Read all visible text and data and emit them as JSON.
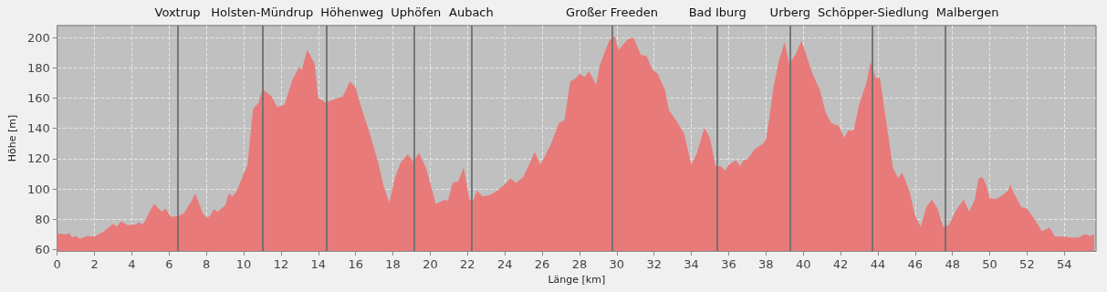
{
  "chart_data": {
    "type": "area",
    "xlabel": "Länge [km]",
    "ylabel": "Höhe [m]",
    "x": [
      0,
      0.2,
      0.5,
      0.6,
      0.8,
      1.0,
      1.2,
      1.6,
      2.0,
      2.5,
      3.0,
      3.2,
      3.4,
      3.8,
      4.2,
      4.4,
      4.6,
      5.0,
      5.2,
      5.6,
      5.8,
      6.1,
      6.5,
      6.8,
      7.2,
      7.4,
      7.8,
      8.0,
      8.2,
      8.4,
      8.6,
      9.0,
      9.2,
      9.4,
      9.6,
      9.8,
      10.2,
      10.5,
      10.8,
      11.0,
      11.5,
      11.8,
      12.2,
      12.6,
      13.0,
      13.1,
      13.4,
      13.8,
      14.0,
      14.4,
      15.0,
      15.3,
      15.7,
      16.0,
      16.3,
      16.7,
      17.2,
      17.5,
      17.8,
      18.1,
      18.4,
      18.8,
      19.1,
      19.4,
      19.8,
      20.3,
      20.8,
      20.95,
      21.2,
      21.5,
      21.8,
      22.1,
      22.3,
      22.5,
      22.8,
      23.2,
      23.6,
      24.0,
      24.3,
      24.6,
      25.0,
      25.3,
      25.6,
      25.9,
      26.2,
      26.5,
      26.9,
      27.2,
      27.5,
      27.8,
      28.0,
      28.3,
      28.5,
      28.9,
      29.1,
      29.6,
      29.9,
      30.1,
      30.6,
      30.9,
      31.3,
      31.6,
      31.9,
      32.2,
      32.6,
      32.8,
      33.2,
      33.6,
      34.0,
      34.3,
      34.7,
      35.0,
      35.3,
      35.6,
      35.8,
      36.0,
      36.4,
      36.6,
      36.8,
      37.0,
      37.4,
      37.8,
      38.0,
      38.2,
      38.4,
      38.7,
      39.0,
      39.25,
      39.6,
      39.9,
      40.2,
      40.5,
      40.9,
      41.2,
      41.5,
      41.9,
      42.2,
      42.4,
      42.7,
      43.0,
      43.4,
      43.6,
      43.9,
      44.1,
      44.5,
      44.8,
      45.1,
      45.3,
      45.7,
      46.0,
      46.3,
      46.6,
      46.9,
      47.2,
      47.5,
      47.8,
      48.2,
      48.6,
      48.9,
      49.2,
      49.4,
      49.6,
      49.8,
      50.0,
      50.3,
      50.6,
      51.0,
      51.1,
      51.3,
      51.7,
      52.0,
      52.4,
      52.8,
      53.2,
      53.5,
      54.0,
      54.4,
      54.8,
      55.1,
      55.4,
      55.6
    ],
    "values": [
      70,
      70.5,
      69.7,
      71,
      68,
      69,
      67,
      69,
      68.5,
      72,
      77,
      75,
      78.5,
      76,
      76.5,
      78,
      76.5,
      86,
      90,
      85,
      87,
      81.5,
      82,
      84,
      92,
      97,
      84,
      81,
      82,
      86.6,
      85,
      89,
      97,
      95,
      98,
      104,
      116,
      153,
      157,
      166,
      161,
      154,
      156,
      172,
      181,
      178,
      192,
      183,
      160,
      157,
      160,
      161,
      171,
      167,
      154,
      139,
      118,
      102,
      91,
      107,
      117,
      123,
      118,
      124,
      113,
      90,
      93,
      92,
      104,
      105,
      114,
      93,
      92,
      99,
      95,
      96,
      99,
      103,
      107,
      104,
      108,
      116,
      124.5,
      116,
      123,
      130.5,
      143.6,
      145.6,
      171,
      173,
      176,
      174,
      178,
      169,
      182,
      198,
      201,
      192,
      199,
      200,
      188.5,
      188,
      179,
      176,
      165,
      152,
      145,
      137,
      116,
      123.5,
      140.6,
      133.5,
      115,
      115,
      112,
      116,
      119,
      115,
      119,
      119.4,
      126.4,
      129.5,
      132.5,
      148.6,
      166.8,
      185,
      197,
      183,
      189,
      198,
      187,
      176,
      165,
      150.6,
      143.6,
      141.6,
      134,
      138.6,
      138.6,
      155.7,
      170.8,
      184,
      172.8,
      173.8,
      140.6,
      114.4,
      107,
      111,
      98.3,
      82.2,
      75,
      88,
      93,
      87,
      75,
      76,
      86,
      93,
      85,
      93,
      106.7,
      108,
      103,
      93.8,
      93.2,
      95,
      99,
      103,
      97,
      88,
      87,
      80,
      72,
      74.5,
      68.5,
      68.5,
      67.7,
      68,
      70,
      69,
      70
    ],
    "color": "#e87a7a",
    "xlim": [
      0,
      55.7
    ],
    "ylim": [
      59,
      208
    ],
    "xticks": [
      0,
      2,
      4,
      6,
      8,
      10,
      12,
      14,
      16,
      18,
      20,
      22,
      24,
      26,
      28,
      30,
      32,
      34,
      36,
      38,
      40,
      42,
      44,
      46,
      48,
      50,
      52,
      54
    ],
    "yticks": [
      60,
      80,
      100,
      120,
      140,
      160,
      180,
      200
    ],
    "grid": true,
    "marker": "none",
    "ref_lines": [
      {
        "axis": "x",
        "value": 6.45,
        "label": "Voxtrup",
        "color": "#6e6e6e"
      },
      {
        "axis": "x",
        "value": 10.99,
        "label": "Holsten-Mündrup",
        "color": "#6e6e6e"
      },
      {
        "axis": "x",
        "value": 14.45,
        "label": "Höhenweg",
        "color": "#6e6e6e"
      },
      {
        "axis": "x",
        "value": 19.14,
        "label": "Uphöfen",
        "color": "#6e6e6e"
      },
      {
        "axis": "x",
        "value": 22.2,
        "label": "Aubach",
        "color": "#6e6e6e"
      },
      {
        "axis": "x",
        "value": 29.74,
        "label": "Großer Freeden",
        "color": "#6e6e6e"
      },
      {
        "axis": "x",
        "value": 35.4,
        "label": "Bad Iburg",
        "color": "#6e6e6e"
      },
      {
        "axis": "x",
        "value": 39.3,
        "label": "Urberg",
        "color": "#6e6e6e"
      },
      {
        "axis": "x",
        "value": 43.7,
        "label": "Schöpper-Siedlung",
        "color": "#6e6e6e"
      },
      {
        "axis": "x",
        "value": 47.6,
        "label": "Malbergen",
        "color": "#6e6e6e"
      }
    ]
  }
}
